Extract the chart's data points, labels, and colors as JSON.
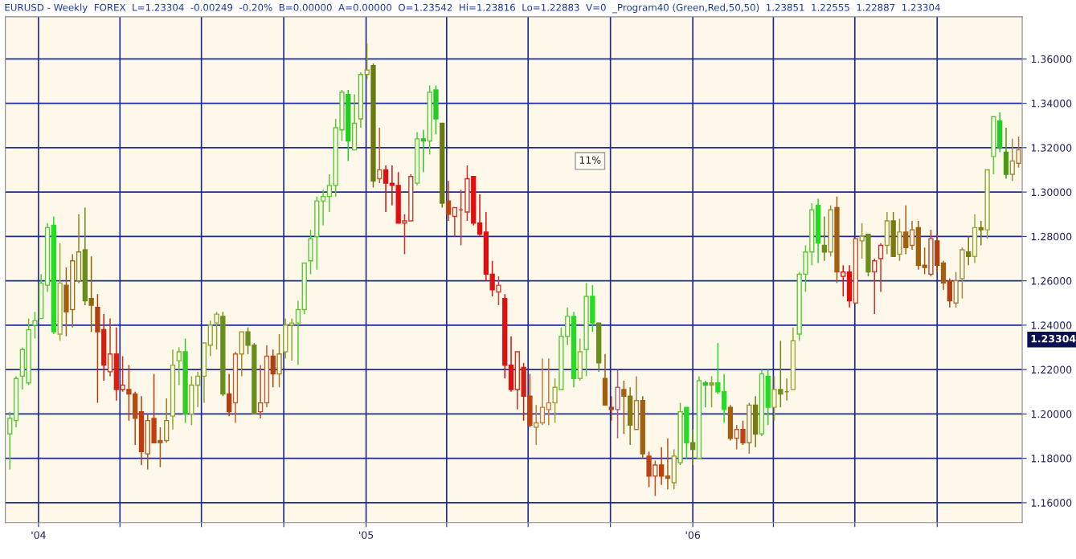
{
  "chart_data": {
    "type": "candlestick",
    "title": "EURUSD - Weekly  FOREX  L=1.23304  -0.00249  -0.20%  B=0.00000  A=0.00000  O=1.23542  Hi=1.23816  Lo=1.22883  V=0  _Program40 (Green,Red,50,50)  1.23851  1.22555  1.22887  1.23304",
    "x": [
      "2003-11-30",
      "2003-12-07",
      "2003-12-14",
      "2003-12-21",
      "2003-12-28",
      "2004-01-04",
      "2004-01-11",
      "2004-01-18",
      "2004-01-25",
      "2004-02-01",
      "2004-02-08",
      "2004-02-15",
      "2004-02-22",
      "2004-02-29",
      "2004-03-07",
      "2004-03-14",
      "2004-03-21",
      "2004-03-28",
      "2004-04-04",
      "2004-04-11",
      "2004-04-18",
      "2004-04-25",
      "2004-05-02",
      "2004-05-09",
      "2004-05-16",
      "2004-05-23",
      "2004-05-30",
      "2004-06-06",
      "2004-06-13",
      "2004-06-20",
      "2004-06-27",
      "2004-07-04",
      "2004-07-11",
      "2004-07-18",
      "2004-07-25",
      "2004-08-01",
      "2004-08-08",
      "2004-08-15",
      "2004-08-22",
      "2004-08-29",
      "2004-09-05",
      "2004-09-12",
      "2004-09-19",
      "2004-09-26",
      "2004-10-03",
      "2004-10-10",
      "2004-10-17",
      "2004-10-24",
      "2004-10-31",
      "2004-11-07",
      "2004-11-14",
      "2004-11-21",
      "2004-11-28",
      "2004-12-05",
      "2004-12-12",
      "2004-12-19",
      "2004-12-26",
      "2005-01-02",
      "2005-01-09",
      "2005-01-16",
      "2005-01-23",
      "2005-01-30",
      "2005-02-06",
      "2005-02-13",
      "2005-02-20",
      "2005-02-27",
      "2005-03-06",
      "2005-03-13",
      "2005-03-20",
      "2005-03-27",
      "2005-04-03",
      "2005-04-10",
      "2005-04-17",
      "2005-04-24",
      "2005-05-01",
      "2005-05-08",
      "2005-05-15",
      "2005-05-22",
      "2005-05-29",
      "2005-06-05",
      "2005-06-12",
      "2005-06-19",
      "2005-06-26",
      "2005-07-03",
      "2005-07-10",
      "2005-07-17",
      "2005-07-24",
      "2005-07-31",
      "2005-08-07",
      "2005-08-14",
      "2005-08-21",
      "2005-08-28",
      "2005-09-04",
      "2005-09-11",
      "2005-09-18",
      "2005-09-25",
      "2005-10-02",
      "2005-10-09",
      "2005-10-16",
      "2005-10-23",
      "2005-10-30",
      "2005-11-06",
      "2005-11-13",
      "2005-11-20",
      "2005-11-27",
      "2005-12-04",
      "2005-12-11",
      "2005-12-18",
      "2005-12-25",
      "2006-01-01",
      "2006-01-08",
      "2006-01-15",
      "2006-01-22",
      "2006-01-29",
      "2006-02-05",
      "2006-02-12",
      "2006-02-19",
      "2006-02-26",
      "2006-03-05",
      "2006-03-12",
      "2006-03-19",
      "2006-03-26",
      "2006-04-02",
      "2006-04-09",
      "2006-04-16",
      "2006-04-23",
      "2006-04-30",
      "2006-05-07",
      "2006-05-14",
      "2006-05-21",
      "2006-05-28",
      "2006-06-04",
      "2006-06-11",
      "2006-06-18",
      "2006-06-25",
      "2006-07-02",
      "2006-07-09",
      "2006-07-16",
      "2006-07-23",
      "2006-07-30",
      "2006-08-06",
      "2006-08-13",
      "2006-08-20",
      "2006-08-27",
      "2006-09-03",
      "2006-09-10",
      "2006-09-17",
      "2006-09-24",
      "2006-10-01",
      "2006-10-08",
      "2006-10-15",
      "2006-10-22",
      "2006-10-29",
      "2006-11-05",
      "2006-11-12",
      "2006-11-19",
      "2006-11-26",
      "2006-12-03",
      "2006-12-10",
      "2006-12-17",
      "2006-12-24",
      "2006-12-31"
    ],
    "ohlc": [
      [
        1.191,
        1.201,
        1.175,
        1.198
      ],
      [
        1.197,
        1.217,
        1.194,
        1.216
      ],
      [
        1.217,
        1.23,
        1.211,
        1.229
      ],
      [
        1.214,
        1.243,
        1.213,
        1.238
      ],
      [
        1.24,
        1.246,
        1.234,
        1.242
      ],
      [
        1.243,
        1.263,
        1.243,
        1.259
      ],
      [
        1.258,
        1.286,
        1.255,
        1.284
      ],
      [
        1.285,
        1.289,
        1.236,
        1.237
      ],
      [
        1.236,
        1.277,
        1.233,
        1.259
      ],
      [
        1.258,
        1.266,
        1.235,
        1.246
      ],
      [
        1.247,
        1.272,
        1.239,
        1.269
      ],
      [
        1.26,
        1.29,
        1.259,
        1.273
      ],
      [
        1.274,
        1.293,
        1.249,
        1.251
      ],
      [
        1.252,
        1.271,
        1.237,
        1.249
      ],
      [
        1.248,
        1.254,
        1.205,
        1.237
      ],
      [
        1.238,
        1.245,
        1.215,
        1.222
      ],
      [
        1.219,
        1.243,
        1.217,
        1.227
      ],
      [
        1.227,
        1.239,
        1.206,
        1.211
      ],
      [
        1.211,
        1.226,
        1.21,
        1.213
      ],
      [
        1.211,
        1.222,
        1.197,
        1.209
      ],
      [
        1.209,
        1.21,
        1.186,
        1.198
      ],
      [
        1.201,
        1.208,
        1.177,
        1.183
      ],
      [
        1.182,
        1.2,
        1.175,
        1.197
      ],
      [
        1.198,
        1.218,
        1.187,
        1.187
      ],
      [
        1.188,
        1.194,
        1.176,
        1.187
      ],
      [
        1.188,
        1.207,
        1.187,
        1.197
      ],
      [
        1.199,
        1.229,
        1.193,
        1.222
      ],
      [
        1.224,
        1.23,
        1.213,
        1.228
      ],
      [
        1.228,
        1.234,
        1.196,
        1.2
      ],
      [
        1.2,
        1.217,
        1.195,
        1.213
      ],
      [
        1.213,
        1.219,
        1.203,
        1.217
      ],
      [
        1.217,
        1.232,
        1.205,
        1.232
      ],
      [
        1.231,
        1.242,
        1.226,
        1.24
      ],
      [
        1.241,
        1.246,
        1.229,
        1.245
      ],
      [
        1.244,
        1.246,
        1.208,
        1.209
      ],
      [
        1.209,
        1.218,
        1.199,
        1.201
      ],
      [
        1.205,
        1.228,
        1.196,
        1.227
      ],
      [
        1.227,
        1.237,
        1.217,
        1.237
      ],
      [
        1.237,
        1.239,
        1.227,
        1.231
      ],
      [
        1.231,
        1.232,
        1.2,
        1.2
      ],
      [
        1.201,
        1.222,
        1.198,
        1.205
      ],
      [
        1.205,
        1.231,
        1.203,
        1.226
      ],
      [
        1.226,
        1.229,
        1.212,
        1.218
      ],
      [
        1.218,
        1.236,
        1.212,
        1.227
      ],
      [
        1.228,
        1.243,
        1.225,
        1.24
      ],
      [
        1.24,
        1.243,
        1.224,
        1.241
      ],
      [
        1.241,
        1.251,
        1.222,
        1.247
      ],
      [
        1.247,
        1.268,
        1.245,
        1.268
      ],
      [
        1.269,
        1.283,
        1.263,
        1.279
      ],
      [
        1.28,
        1.298,
        1.265,
        1.296
      ],
      [
        1.296,
        1.301,
        1.285,
        1.298
      ],
      [
        1.298,
        1.308,
        1.291,
        1.303
      ],
      [
        1.303,
        1.333,
        1.298,
        1.329
      ],
      [
        1.328,
        1.346,
        1.323,
        1.345
      ],
      [
        1.344,
        1.346,
        1.314,
        1.323
      ],
      [
        1.319,
        1.344,
        1.319,
        1.331
      ],
      [
        1.333,
        1.354,
        1.329,
        1.353
      ],
      [
        1.353,
        1.367,
        1.351,
        1.355
      ],
      [
        1.357,
        1.358,
        1.302,
        1.305
      ],
      [
        1.306,
        1.329,
        1.304,
        1.31
      ],
      [
        1.31,
        1.312,
        1.291,
        1.304
      ],
      [
        1.304,
        1.312,
        1.294,
        1.303
      ],
      [
        1.303,
        1.309,
        1.286,
        1.286
      ],
      [
        1.286,
        1.29,
        1.272,
        1.287
      ],
      [
        1.287,
        1.308,
        1.287,
        1.307
      ],
      [
        1.304,
        1.327,
        1.303,
        1.324
      ],
      [
        1.324,
        1.328,
        1.309,
        1.323
      ],
      [
        1.323,
        1.348,
        1.317,
        1.345
      ],
      [
        1.346,
        1.348,
        1.326,
        1.333
      ],
      [
        1.331,
        1.331,
        1.293,
        1.295
      ],
      [
        1.296,
        1.305,
        1.287,
        1.29
      ],
      [
        1.289,
        1.293,
        1.28,
        1.293
      ],
      [
        1.292,
        1.301,
        1.276,
        1.292
      ],
      [
        1.291,
        1.312,
        1.287,
        1.306
      ],
      [
        1.307,
        1.307,
        1.285,
        1.286
      ],
      [
        1.286,
        1.299,
        1.28,
        1.281
      ],
      [
        1.282,
        1.291,
        1.26,
        1.263
      ],
      [
        1.263,
        1.269,
        1.253,
        1.256
      ],
      [
        1.255,
        1.262,
        1.249,
        1.258
      ],
      [
        1.252,
        1.254,
        1.216,
        1.222
      ],
      [
        1.222,
        1.235,
        1.21,
        1.211
      ],
      [
        1.211,
        1.228,
        1.202,
        1.228
      ],
      [
        1.221,
        1.223,
        1.197,
        1.208
      ],
      [
        1.208,
        1.218,
        1.194,
        1.195
      ],
      [
        1.194,
        1.204,
        1.186,
        1.196
      ],
      [
        1.196,
        1.225,
        1.195,
        1.203
      ],
      [
        1.202,
        1.225,
        1.195,
        1.205
      ],
      [
        1.205,
        1.216,
        1.196,
        1.212
      ],
      [
        1.211,
        1.239,
        1.211,
        1.235
      ],
      [
        1.235,
        1.248,
        1.231,
        1.244
      ],
      [
        1.244,
        1.246,
        1.212,
        1.216
      ],
      [
        1.216,
        1.234,
        1.215,
        1.228
      ],
      [
        1.229,
        1.259,
        1.217,
        1.253
      ],
      [
        1.253,
        1.258,
        1.237,
        1.241
      ],
      [
        1.241,
        1.241,
        1.219,
        1.223
      ],
      [
        1.216,
        1.227,
        1.204,
        1.204
      ],
      [
        1.203,
        1.208,
        1.197,
        1.202
      ],
      [
        1.202,
        1.22,
        1.189,
        1.212
      ],
      [
        1.211,
        1.215,
        1.191,
        1.208
      ],
      [
        1.208,
        1.212,
        1.186,
        1.195
      ],
      [
        1.193,
        1.217,
        1.193,
        1.206
      ],
      [
        1.206,
        1.208,
        1.18,
        1.182
      ],
      [
        1.181,
        1.183,
        1.167,
        1.172
      ],
      [
        1.172,
        1.179,
        1.163,
        1.177
      ],
      [
        1.177,
        1.185,
        1.168,
        1.172
      ],
      [
        1.172,
        1.189,
        1.166,
        1.171
      ],
      [
        1.169,
        1.184,
        1.166,
        1.181
      ],
      [
        1.178,
        1.205,
        1.177,
        1.201
      ],
      [
        1.203,
        1.203,
        1.18,
        1.187
      ],
      [
        1.187,
        1.193,
        1.177,
        1.184
      ],
      [
        1.18,
        1.217,
        1.18,
        1.215
      ],
      [
        1.214,
        1.215,
        1.203,
        1.213
      ],
      [
        1.214,
        1.217,
        1.203,
        1.213
      ],
      [
        1.214,
        1.232,
        1.209,
        1.21
      ],
      [
        1.21,
        1.218,
        1.196,
        1.202
      ],
      [
        1.203,
        1.204,
        1.188,
        1.189
      ],
      [
        1.189,
        1.195,
        1.184,
        1.193
      ],
      [
        1.193,
        1.197,
        1.186,
        1.187
      ],
      [
        1.187,
        1.205,
        1.182,
        1.204
      ],
      [
        1.204,
        1.208,
        1.185,
        1.191
      ],
      [
        1.191,
        1.22,
        1.19,
        1.218
      ],
      [
        1.217,
        1.22,
        1.195,
        1.203
      ],
      [
        1.203,
        1.217,
        1.197,
        1.211
      ],
      [
        1.211,
        1.233,
        1.203,
        1.209
      ],
      [
        1.21,
        1.216,
        1.206,
        1.21
      ],
      [
        1.211,
        1.239,
        1.211,
        1.233
      ],
      [
        1.236,
        1.264,
        1.233,
        1.263
      ],
      [
        1.263,
        1.276,
        1.255,
        1.273
      ],
      [
        1.273,
        1.295,
        1.267,
        1.292
      ],
      [
        1.294,
        1.297,
        1.268,
        1.277
      ],
      [
        1.276,
        1.289,
        1.269,
        1.273
      ],
      [
        1.273,
        1.294,
        1.271,
        1.292
      ],
      [
        1.293,
        1.298,
        1.259,
        1.264
      ],
      [
        1.262,
        1.267,
        1.253,
        1.264
      ],
      [
        1.264,
        1.267,
        1.248,
        1.251
      ],
      [
        1.25,
        1.279,
        1.25,
        1.279
      ],
      [
        1.278,
        1.286,
        1.27,
        1.28
      ],
      [
        1.281,
        1.281,
        1.262,
        1.264
      ],
      [
        1.264,
        1.27,
        1.245,
        1.269
      ],
      [
        1.27,
        1.277,
        1.255,
        1.276
      ],
      [
        1.276,
        1.291,
        1.272,
        1.287
      ],
      [
        1.287,
        1.291,
        1.271,
        1.271
      ],
      [
        1.272,
        1.288,
        1.269,
        1.282
      ],
      [
        1.282,
        1.294,
        1.272,
        1.275
      ],
      [
        1.276,
        1.287,
        1.274,
        1.283
      ],
      [
        1.284,
        1.287,
        1.265,
        1.267
      ],
      [
        1.267,
        1.275,
        1.263,
        1.266
      ],
      [
        1.263,
        1.283,
        1.262,
        1.279
      ],
      [
        1.278,
        1.281,
        1.264,
        1.267
      ],
      [
        1.268,
        1.269,
        1.256,
        1.259
      ],
      [
        1.26,
        1.261,
        1.248,
        1.251
      ],
      [
        1.25,
        1.264,
        1.248,
        1.26
      ],
      [
        1.261,
        1.275,
        1.252,
        1.274
      ],
      [
        1.273,
        1.28,
        1.267,
        1.271
      ],
      [
        1.271,
        1.29,
        1.268,
        1.284
      ],
      [
        1.284,
        1.287,
        1.276,
        1.283
      ],
      [
        1.283,
        1.31,
        1.279,
        1.31
      ],
      [
        1.316,
        1.334,
        1.308,
        1.334
      ],
      [
        1.332,
        1.336,
        1.318,
        1.32
      ],
      [
        1.318,
        1.329,
        1.306,
        1.308
      ],
      [
        1.308,
        1.324,
        1.305,
        1.314
      ],
      [
        1.313,
        1.325,
        1.311,
        1.319
      ]
    ],
    "colors": [
      "#55cc33",
      "#55cc33",
      "#55cc33",
      "#55cc33",
      "#55cc33",
      "#55cc33",
      "#55cc33",
      "#22dd22",
      "#99aa33",
      "#a06010",
      "#a07020",
      "#888820",
      "#6b8e1a",
      "#8a6a00",
      "#b04010",
      "#d02010",
      "#c04020",
      "#d82010",
      "#d03020",
      "#c04010",
      "#b84a10",
      "#c03a10",
      "#a06020",
      "#c04010",
      "#a06020",
      "#a08020",
      "#88aa30",
      "#77bb33",
      "#33cc22",
      "#88aa30",
      "#88aa30",
      "#88aa30",
      "#88aa30",
      "#88aa30",
      "#6b8e1a",
      "#b04010",
      "#c06030",
      "#a09020",
      "#6b8e1a",
      "#6b8e1a",
      "#c05030",
      "#c06030",
      "#b04010",
      "#a08020",
      "#99aa33",
      "#88aa30",
      "#55cc33",
      "#55cc33",
      "#55cc33",
      "#55cc33",
      "#55cc33",
      "#55cc33",
      "#55cc33",
      "#55cc33",
      "#22cc22",
      "#66bb33",
      "#66bb33",
      "#88aa30",
      "#6b7a10",
      "#c06030",
      "#e01010",
      "#e01010",
      "#e01010",
      "#d03020",
      "#c04030",
      "#55cc33",
      "#33bb33",
      "#55cc33",
      "#22cc22",
      "#6b7a10",
      "#c04010",
      "#c04030",
      "#c04030",
      "#d03030",
      "#e01010",
      "#e01010",
      "#e01010",
      "#e01010",
      "#d04030",
      "#e01010",
      "#e01010",
      "#d03020",
      "#d02010",
      "#c04010",
      "#c08040",
      "#c08040",
      "#c08040",
      "#99aa33",
      "#55cc33",
      "#55cc33",
      "#22dd22",
      "#88bb33",
      "#55cc33",
      "#22dd22",
      "#6b8e1a",
      "#a06010",
      "#a04030",
      "#a06080",
      "#a06010",
      "#8a7a10",
      "#a08040",
      "#a06010",
      "#c04010",
      "#c05030",
      "#c04010",
      "#a06020",
      "#999930",
      "#66bb33",
      "#22dd22",
      "#6b8e1a",
      "#55cc33",
      "#33bb33",
      "#88aa30",
      "#22dd22",
      "#22dd22",
      "#a06010",
      "#c06030",
      "#c04010",
      "#a08040",
      "#7a7a10",
      "#55cc33",
      "#22dd22",
      "#99aa33",
      "#6b8e1a",
      "#888820",
      "#99aa33",
      "#55cc33",
      "#55cc33",
      "#55cc33",
      "#22dd22",
      "#6b8e1a",
      "#a09040",
      "#a06010",
      "#e01010",
      "#e01010",
      "#c05030",
      "#999930",
      "#6b8e1a",
      "#d03030",
      "#d03030",
      "#999930",
      "#7a7a10",
      "#a09040",
      "#a06010",
      "#a07030",
      "#a06010",
      "#a06010",
      "#c04030",
      "#b04010",
      "#a06010",
      "#b04010",
      "#a08040",
      "#a09040",
      "#7a7a10",
      "#99aa33",
      "#7a7a10",
      "#88aa30",
      "#55cc33",
      "#22cc22",
      "#4a9a10",
      "#a09040",
      "#c07030"
    ],
    "xlim": [
      "2003-11-25",
      "2007-01-04"
    ],
    "ylim": [
      1.151,
      1.379
    ],
    "xticks": [
      {
        "value": "2004-01-01",
        "label": "'04"
      },
      {
        "value": "2004-04-01",
        "label": null
      },
      {
        "value": "2004-07-01",
        "label": null
      },
      {
        "value": "2004-10-01",
        "label": null
      },
      {
        "value": "2005-01-01",
        "label": "'05"
      },
      {
        "value": "2005-04-01",
        "label": null
      },
      {
        "value": "2005-07-01",
        "label": null
      },
      {
        "value": "2005-10-01",
        "label": null
      },
      {
        "value": "2006-01-01",
        "label": "'06"
      },
      {
        "value": "2006-04-01",
        "label": null
      },
      {
        "value": "2006-07-01",
        "label": null
      },
      {
        "value": "2006-10-01",
        "label": null
      }
    ],
    "yticks": [
      {
        "value": 1.16,
        "label": "1.16000"
      },
      {
        "value": 1.18,
        "label": "1.18000"
      },
      {
        "value": 1.2,
        "label": "1.20000"
      },
      {
        "value": 1.22,
        "label": "1.22000"
      },
      {
        "value": 1.24,
        "label": "1.24000"
      },
      {
        "value": 1.26,
        "label": "1.26000"
      },
      {
        "value": 1.28,
        "label": "1.28000"
      },
      {
        "value": 1.3,
        "label": "1.30000"
      },
      {
        "value": 1.32,
        "label": "1.32000"
      },
      {
        "value": 1.34,
        "label": "1.34000"
      },
      {
        "value": 1.36,
        "label": "1.36000"
      }
    ],
    "grid": true,
    "annotations": [
      "11%",
      "1.23304"
    ]
  }
}
